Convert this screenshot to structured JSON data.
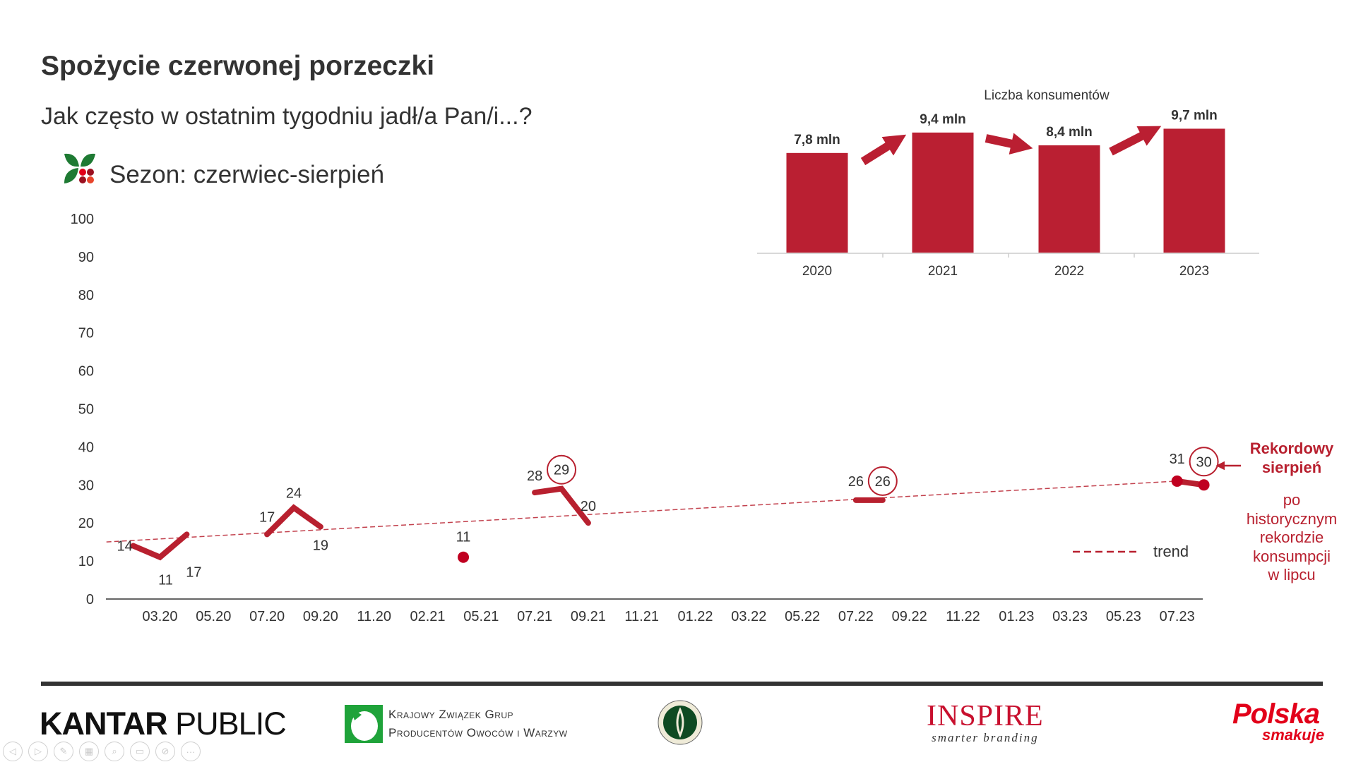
{
  "header": {
    "title": "Spożycie czerwonej porzeczki",
    "subtitle": "Jak często w ostatnim tygodniu jadł/a Pan/i...?",
    "season": "Sezon: czerwiec-sierpień",
    "season_icon": "currant-leaf-icon"
  },
  "colors": {
    "series": "#B8202F",
    "trend": "#B8202F",
    "bars": "#BA1F32",
    "text": "#333333"
  },
  "chart_data": [
    {
      "type": "line",
      "ylim": [
        0,
        100
      ],
      "yticks": [
        "0",
        "10",
        "20",
        "30",
        "40",
        "50",
        "60",
        "70",
        "80",
        "90",
        "100"
      ],
      "categories": [
        "03.20",
        "05.20",
        "07.20",
        "09.20",
        "11.20",
        "02.21",
        "05.21",
        "07.21",
        "09.21",
        "11.21",
        "01.22",
        "03.22",
        "05.22",
        "07.22",
        "09.22",
        "11.22",
        "01.23",
        "03.23",
        "05.23",
        "07.23"
      ],
      "segments": [
        {
          "points": [
            {
              "x": "02.20",
              "y": 14
            },
            {
              "x": "03.20",
              "y": 11
            },
            {
              "x": "04.20",
              "y": 17
            }
          ]
        },
        {
          "points": [
            {
              "x": "07.20",
              "y": 17
            },
            {
              "x": "08.20",
              "y": 24
            },
            {
              "x": "09.20",
              "y": 19
            }
          ]
        },
        {
          "points": [
            {
              "x": "04.21",
              "y": 11
            }
          ],
          "marker": true
        },
        {
          "points": [
            {
              "x": "07.21",
              "y": 28
            },
            {
              "x": "08.21",
              "y": 29,
              "circled": true
            },
            {
              "x": "09.21",
              "y": 20
            }
          ]
        },
        {
          "points": [
            {
              "x": "07.22",
              "y": 26
            },
            {
              "x": "08.22",
              "y": 26,
              "circled": true
            }
          ]
        },
        {
          "points": [
            {
              "x": "07.23",
              "y": 31
            },
            {
              "x": "08.23",
              "y": 30,
              "circled": true
            }
          ],
          "marker": true
        }
      ],
      "trend": {
        "name": "trend",
        "start": {
          "x": "01.20",
          "y": 15
        },
        "end": {
          "x": "07.23",
          "y": 31
        }
      },
      "legend": {
        "label": "trend",
        "placement": "bottom-right"
      },
      "annotation": {
        "title": [
          "Rekordowy",
          "sierpień"
        ],
        "body": [
          "po",
          "historycznym",
          "rekordzie",
          "konsumpcji",
          "w lipcu"
        ]
      }
    },
    {
      "type": "bar",
      "title": "Liczba konsumentów",
      "categories": [
        "2020",
        "2021",
        "2022",
        "2023"
      ],
      "values": [
        7.8,
        9.4,
        8.4,
        9.7
      ],
      "labels": [
        "7,8 mln",
        "9,4 mln",
        "8,4 mln",
        "9,7 mln"
      ],
      "unit": "mln",
      "trend_arrows": [
        "up",
        "down",
        "up"
      ]
    }
  ],
  "footer": {
    "logos": {
      "kantar": {
        "a": "KANTAR",
        "b": "PUBLIC"
      },
      "kzgp": [
        "Krajowy Związek Grup",
        "Producentów Owoców i Warzyw"
      ],
      "ministry": "ministry-seal",
      "inspire": {
        "a": "INSPIRE",
        "b": "smarter branding"
      },
      "polska": {
        "a": "Polska",
        "b": "smakuje"
      }
    }
  },
  "toolbar": {
    "icons": [
      "previous-icon",
      "next-icon",
      "pen-icon",
      "slides-icon",
      "zoom-icon",
      "subtitles-icon",
      "video-off-icon",
      "more-icon"
    ],
    "glyphs": [
      "◁",
      "▷",
      "✎",
      "▦",
      "⌕",
      "▭",
      "⊘",
      "···"
    ]
  }
}
